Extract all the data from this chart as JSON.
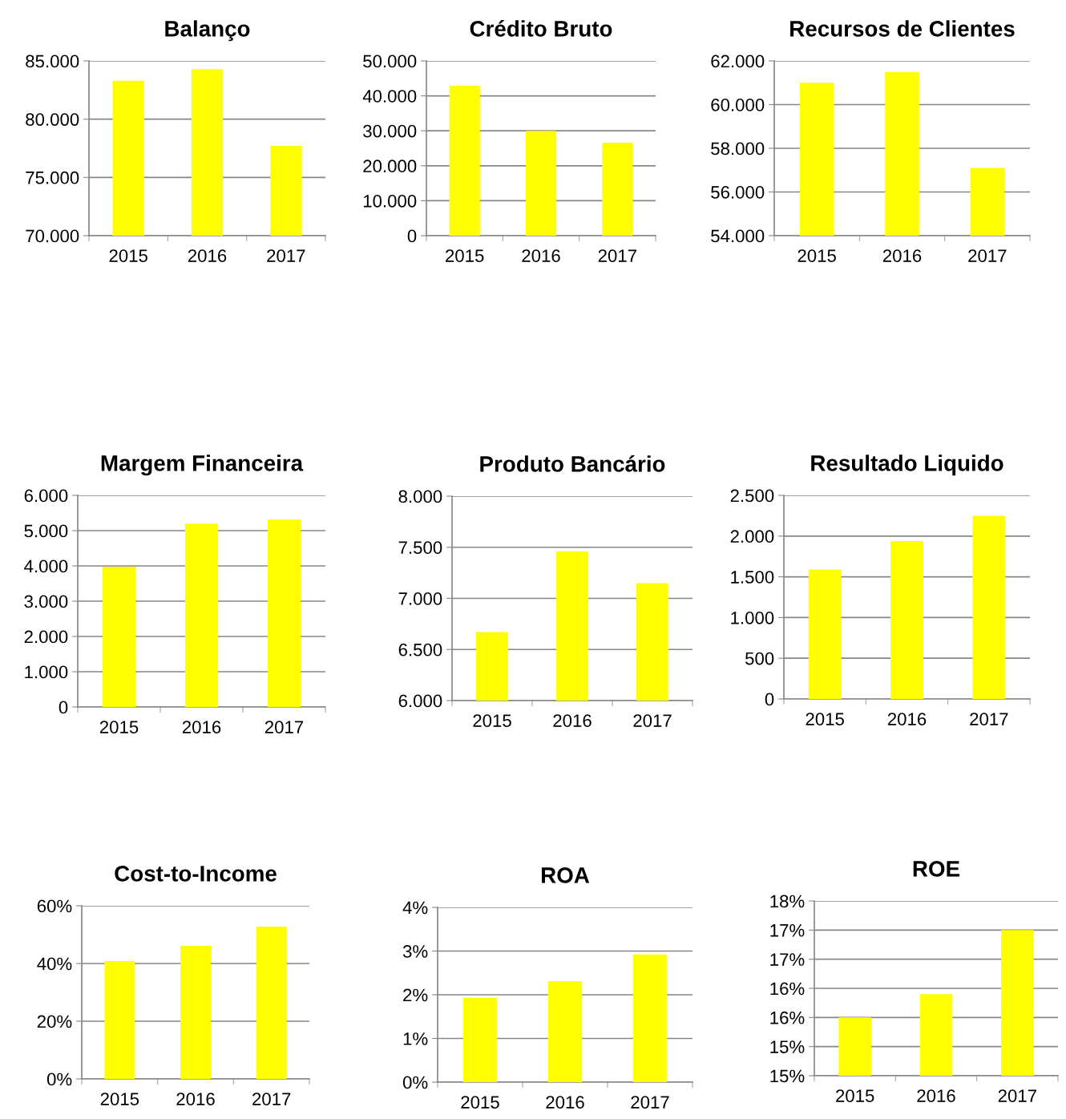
{
  "chart_data": [
    {
      "type": "bar",
      "title": "Balanço",
      "categories": [
        "2015",
        "2016",
        "2017"
      ],
      "values": [
        83300,
        84300,
        77700
      ],
      "color": "#ffff00",
      "ylim": [
        70000,
        85000
      ],
      "yticks": [
        {
          "value": 70000,
          "label": "70.000"
        },
        {
          "value": 75000,
          "label": "75.000"
        },
        {
          "value": 80000,
          "label": "80.000"
        },
        {
          "value": 85000,
          "label": "85.000"
        }
      ],
      "grid": "y"
    },
    {
      "type": "bar",
      "title": "Crédito Bruto",
      "categories": [
        "2015",
        "2016",
        "2017"
      ],
      "values": [
        42900,
        30000,
        26600
      ],
      "color": "#ffff00",
      "ylim": [
        0,
        50000
      ],
      "yticks": [
        0,
        {
          "value": 10000,
          "label": "10.000"
        },
        {
          "value": 20000,
          "label": "20.000"
        },
        {
          "value": 30000,
          "label": "30.000"
        },
        {
          "value": 40000,
          "label": "40.000"
        },
        {
          "value": 50000,
          "label": "50.000"
        }
      ],
      "grid": "y"
    },
    {
      "type": "bar",
      "title": "Recursos de Clientes",
      "categories": [
        "2015",
        "2016",
        "2017"
      ],
      "values": [
        61000,
        61500,
        57100
      ],
      "color": "#ffff00",
      "ylim": [
        54000,
        62000
      ],
      "yticks": [
        {
          "value": 54000,
          "label": "54.000"
        },
        {
          "value": 56000,
          "label": "56.000"
        },
        {
          "value": 58000,
          "label": "58.000"
        },
        {
          "value": 60000,
          "label": "60.000"
        },
        {
          "value": 62000,
          "label": "62.000"
        }
      ],
      "grid": "y"
    },
    {
      "type": "bar",
      "title": "Margem Financeira",
      "categories": [
        "2015",
        "2016",
        "2017"
      ],
      "values": [
        3980,
        5200,
        5320
      ],
      "color": "#ffff00",
      "ylim": [
        0,
        6000
      ],
      "yticks": [
        0,
        {
          "value": 1000,
          "label": "1.000"
        },
        {
          "value": 2000,
          "label": "2.000"
        },
        {
          "value": 3000,
          "label": "3.000"
        },
        {
          "value": 4000,
          "label": "4.000"
        },
        {
          "value": 5000,
          "label": "5.000"
        },
        {
          "value": 6000,
          "label": "6.000"
        }
      ],
      "grid": "y"
    },
    {
      "type": "bar",
      "title": "Produto Bancário",
      "categories": [
        "2015",
        "2016",
        "2017"
      ],
      "values": [
        6670,
        7460,
        7150
      ],
      "color": "#ffff00",
      "ylim": [
        6000,
        8000
      ],
      "yticks": [
        {
          "value": 6000,
          "label": "6.000"
        },
        {
          "value": 6500,
          "label": "6.500"
        },
        {
          "value": 7000,
          "label": "7.000"
        },
        {
          "value": 7500,
          "label": "7.500"
        },
        {
          "value": 8000,
          "label": "8.000"
        }
      ],
      "grid": "y"
    },
    {
      "type": "bar",
      "title": "Resultado Liquido",
      "categories": [
        "2015",
        "2016",
        "2017"
      ],
      "values": [
        1590,
        1940,
        2250
      ],
      "color": "#ffff00",
      "ylim": [
        0,
        2500
      ],
      "yticks": [
        0,
        500,
        {
          "value": 1000,
          "label": "1.000"
        },
        {
          "value": 1500,
          "label": "1.500"
        },
        {
          "value": 2000,
          "label": "2.000"
        },
        {
          "value": 2500,
          "label": "2.500"
        }
      ],
      "grid": "y"
    },
    {
      "type": "bar",
      "title": "Cost-to-Income",
      "categories": [
        "2015",
        "2016",
        "2017"
      ],
      "values": [
        40.8,
        46.1,
        52.8
      ],
      "color": "#ffff00",
      "ylim": [
        0,
        60
      ],
      "yticks": [
        {
          "value": 0,
          "label": "0%"
        },
        {
          "value": 20,
          "label": "20%"
        },
        {
          "value": 40,
          "label": "40%"
        },
        {
          "value": 60,
          "label": "60%"
        }
      ],
      "grid": "y"
    },
    {
      "type": "bar",
      "title": "ROA",
      "categories": [
        "2015",
        "2016",
        "2017"
      ],
      "values": [
        1.93,
        2.31,
        2.92
      ],
      "color": "#ffff00",
      "ylim": [
        0,
        4
      ],
      "yticks": [
        {
          "value": 0,
          "label": "0%"
        },
        {
          "value": 1,
          "label": "1%"
        },
        {
          "value": 2,
          "label": "2%"
        },
        {
          "value": 3,
          "label": "3%"
        },
        {
          "value": 4,
          "label": "4%"
        }
      ],
      "grid": "y"
    },
    {
      "type": "bar",
      "title": "ROE",
      "categories": [
        "2015",
        "2016",
        "2017"
      ],
      "values": [
        15.5,
        15.9,
        17.0
      ],
      "color": "#ffff00",
      "ylim": [
        14.5,
        17.5
      ],
      "yticks": [
        {
          "value": 14.5,
          "label": "15%"
        },
        {
          "value": 15,
          "label": "15%"
        },
        {
          "value": 15.5,
          "label": "16%"
        },
        {
          "value": 16,
          "label": "16%"
        },
        {
          "value": 16.5,
          "label": "17%"
        },
        {
          "value": 17,
          "label": "17%"
        },
        {
          "value": 17.5,
          "label": "18%"
        }
      ],
      "grid": "y"
    }
  ]
}
